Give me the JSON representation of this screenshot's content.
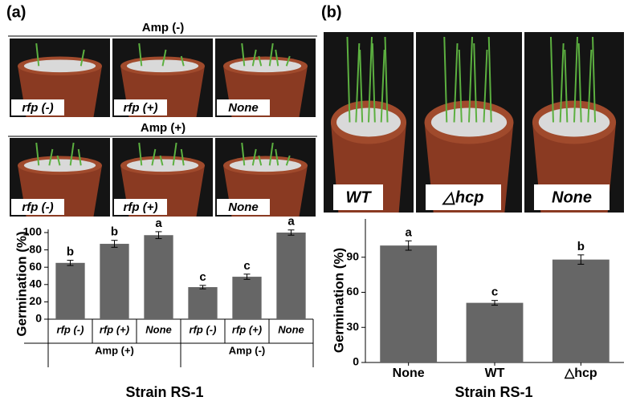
{
  "panel_labels": [
    "(a)",
    "(b)"
  ],
  "photos_a": [
    {
      "title": "Amp (-)",
      "labels": [
        "rfp (-)",
        "rfp (+)",
        "None"
      ]
    },
    {
      "title": "Amp (+)",
      "labels": [
        "rfp (-)",
        "rfp (+)",
        "None"
      ]
    }
  ],
  "photos_b": {
    "labels": [
      "WT",
      "△hcp",
      "None"
    ]
  },
  "chart_data": [
    {
      "type": "bar",
      "ylabel": "Germination (%)",
      "xlabel": "Strain RS-1",
      "categories": [
        "rfp (-)",
        "rfp (+)",
        "None",
        "rfp (-)",
        "rfp (+)",
        "None"
      ],
      "groups": [
        "Amp (+)",
        "Amp (-)"
      ],
      "values": [
        65,
        87,
        97,
        37,
        49,
        100
      ],
      "errors": [
        3,
        4,
        4,
        2,
        3,
        3
      ],
      "annotations": [
        "b",
        "b",
        "a",
        "c",
        "c",
        "a"
      ],
      "color": "#666666",
      "ylim": [
        0,
        100
      ],
      "yticks": [
        0,
        20,
        40,
        60,
        80,
        100
      ]
    },
    {
      "type": "bar",
      "ylabel": "Germination (%)",
      "xlabel": "Strain RS-1",
      "categories": [
        "None",
        "WT",
        "△hcp"
      ],
      "values": [
        100,
        51,
        88
      ],
      "errors": [
        4,
        2,
        4
      ],
      "annotations": [
        "a",
        "c",
        "b"
      ],
      "color": "#666666",
      "ylim": [
        0,
        120
      ],
      "yticks": [
        0,
        30,
        60,
        90
      ]
    }
  ]
}
